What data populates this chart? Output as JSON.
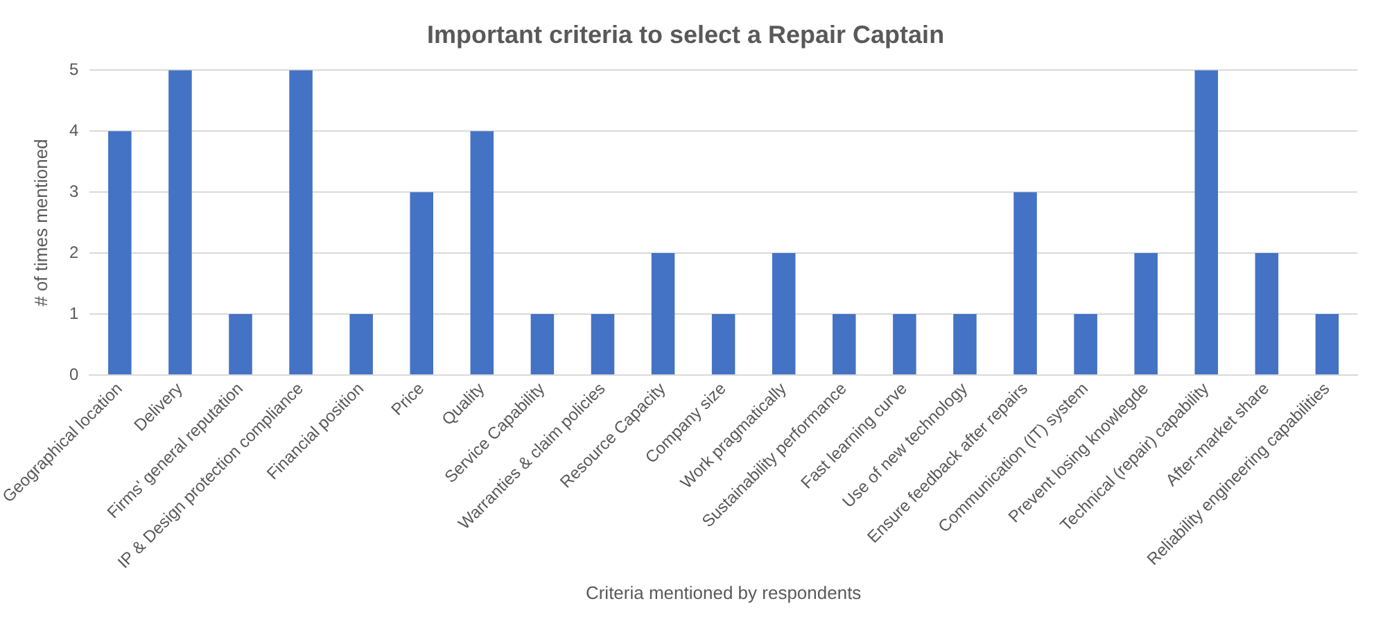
{
  "chart_data": {
    "type": "bar",
    "title": "Important criteria to select a Repair Captain",
    "xlabel": "Criteria mentioned by respondents",
    "ylabel": "# of times mentioned",
    "categories": [
      "Geographical location",
      "Delivery",
      "Firms' general reputation",
      "IP & Design protection compliance",
      "Financial position",
      "Price",
      "Quality",
      "Service Capability",
      "Warranties & claim policies",
      "Resource Capacity",
      "Company size",
      "Work pragmatically",
      "Sustainability performance",
      "Fast learning curve",
      "Use of new technology",
      "Ensure feedback after repairs",
      "Communication (IT) system",
      "Prevent losing knowlegde",
      "Technical (repair) capability",
      "After-market share",
      "Reliability engineering capabilities"
    ],
    "values": [
      4,
      5,
      1,
      5,
      1,
      3,
      4,
      1,
      1,
      2,
      1,
      2,
      1,
      1,
      1,
      3,
      1,
      2,
      5,
      2,
      1
    ],
    "color": "#4472c4",
    "ylim": [
      0,
      5
    ],
    "yticks": [
      0,
      1,
      2,
      3,
      4,
      5
    ],
    "grid": "y"
  }
}
